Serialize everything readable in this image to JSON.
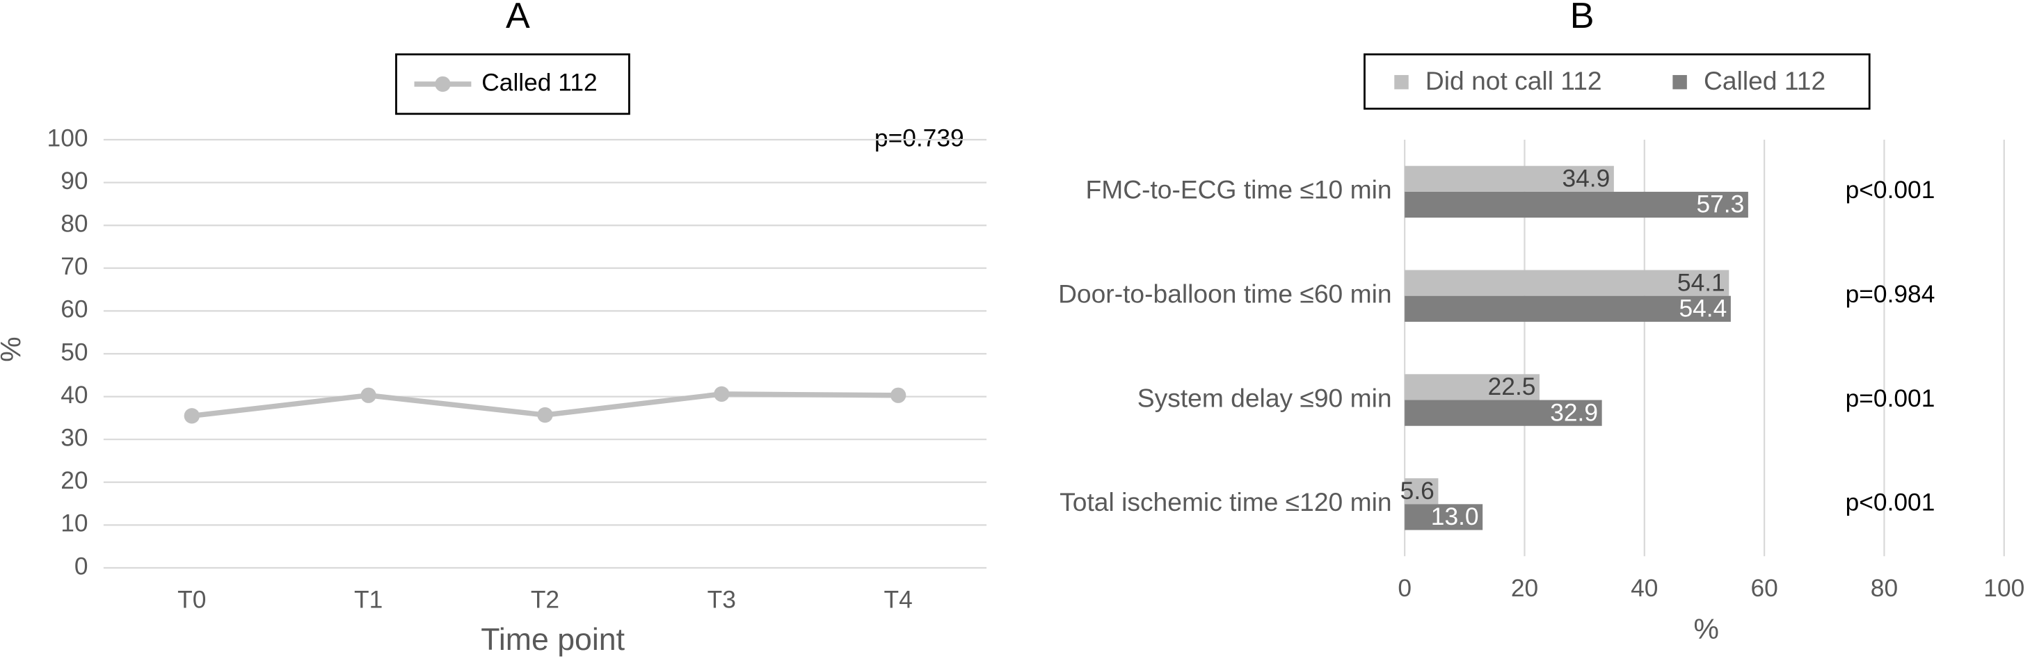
{
  "chart_data": [
    {
      "type": "line",
      "title": "A",
      "categories": [
        "T0",
        "T1",
        "T2",
        "T3",
        "T4"
      ],
      "series": [
        {
          "name": "Called 112",
          "color": "#bfbfbf",
          "values": [
            35.5,
            40.3,
            35.7,
            40.6,
            40.3
          ]
        }
      ],
      "ylim": [
        0,
        100
      ],
      "yticks": [
        0,
        10,
        20,
        30,
        40,
        50,
        60,
        70,
        80,
        90,
        100
      ],
      "y_label": "%",
      "x_label": "Time point",
      "annotation": "p=0.739",
      "grid": true,
      "legend": "top"
    },
    {
      "type": "hbar",
      "title": "B",
      "categories": [
        "FMC-to-ECG time  ≤10 min",
        "Door-to-balloon time ≤60 min",
        "System delay ≤90 min",
        "Total ischemic time ≤120 min"
      ],
      "series": [
        {
          "name": "Did not call 112",
          "color": "#bfbfbf",
          "values": [
            34.9,
            54.1,
            22.5,
            5.6
          ],
          "value_labels": [
            "34.9",
            "54.1",
            "22.5",
            "5.6"
          ]
        },
        {
          "name": "Called 112",
          "color": "#7f7f7f",
          "values": [
            57.3,
            54.4,
            32.9,
            13.0
          ],
          "value_labels": [
            "57.3",
            "54.4",
            "32.9",
            "13.0"
          ]
        }
      ],
      "xlim": [
        0,
        100
      ],
      "xticks": [
        0,
        20,
        40,
        60,
        80,
        100
      ],
      "x_label": "%",
      "annotations": [
        "p<0.001",
        "p=0.984",
        "p=0.001",
        "p<0.001"
      ],
      "grid": true,
      "legend": "top"
    }
  ]
}
